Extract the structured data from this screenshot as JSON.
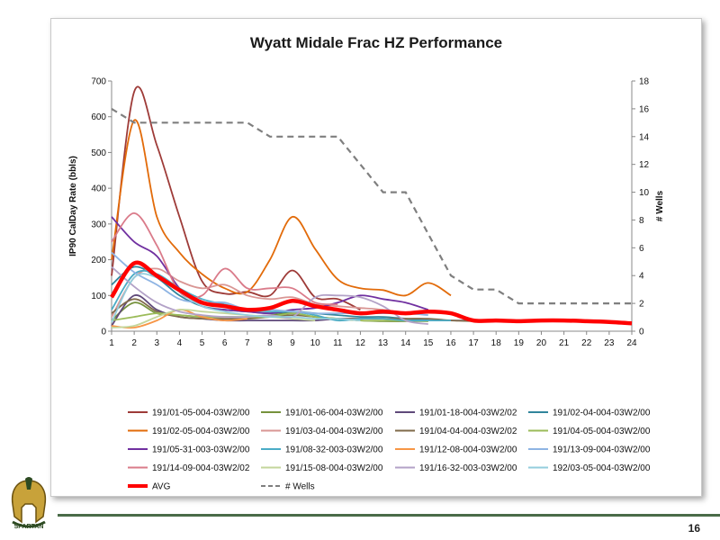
{
  "page": {
    "number": "16",
    "logo_text": "SPARTAN"
  },
  "chart_data": {
    "type": "line",
    "title": "Wyatt Midale Frac HZ Performance",
    "ylabel": "IP90 CalDay Rate (bbls)",
    "y2label": "# Wells",
    "xlabel": "",
    "x": [
      1,
      2,
      3,
      4,
      5,
      6,
      7,
      8,
      9,
      10,
      11,
      12,
      13,
      14,
      15,
      16,
      17,
      18,
      19,
      20,
      21,
      22,
      23,
      24
    ],
    "ylim": [
      0,
      700
    ],
    "yticks": [
      0,
      100,
      200,
      300,
      400,
      500,
      600,
      700
    ],
    "y2lim": [
      0,
      18
    ],
    "y2ticks": [
      0,
      2,
      4,
      6,
      8,
      10,
      12,
      14,
      16,
      18
    ],
    "grid": "none",
    "legend": "bottom",
    "series": [
      {
        "name": "191/01-05-004-03W2/00",
        "color": "#9e3b38",
        "axis": "left",
        "values": [
          155,
          670,
          520,
          320,
          140,
          105,
          110,
          100,
          170,
          95,
          90,
          60,
          null,
          null,
          null,
          null,
          null,
          null,
          null,
          null,
          null,
          null,
          null,
          null
        ]
      },
      {
        "name": "191/01-06-004-03W2/00",
        "color": "#76923c",
        "axis": "left",
        "values": [
          30,
          80,
          50,
          45,
          40,
          40,
          40,
          45,
          50,
          40,
          35,
          30,
          28,
          28,
          28,
          null,
          null,
          null,
          null,
          null,
          null,
          null,
          null,
          null
        ]
      },
      {
        "name": "191/01-18-004-03W2/02",
        "color": "#5f497a",
        "axis": "left",
        "values": [
          15,
          100,
          60,
          40,
          35,
          30,
          30,
          30,
          30,
          30,
          35,
          35,
          35,
          30,
          30,
          30,
          30,
          30,
          30,
          28,
          28,
          28,
          28,
          null
        ]
      },
      {
        "name": "191/02-04-004-03W2/00",
        "color": "#31859c",
        "axis": "left",
        "values": [
          130,
          180,
          150,
          100,
          70,
          60,
          55,
          50,
          55,
          50,
          45,
          40,
          40,
          35,
          30,
          null,
          null,
          null,
          null,
          null,
          null,
          null,
          null,
          null
        ]
      },
      {
        "name": "191/02-05-004-03W2/00",
        "color": "#e26b0a",
        "axis": "left",
        "values": [
          200,
          590,
          320,
          220,
          160,
          120,
          110,
          200,
          320,
          230,
          145,
          120,
          115,
          100,
          135,
          100,
          null,
          null,
          null,
          null,
          null,
          null,
          null,
          null
        ]
      },
      {
        "name": "191/03-04-004-03W2/00",
        "color": "#d99694",
        "axis": "left",
        "values": [
          40,
          150,
          175,
          140,
          120,
          130,
          100,
          90,
          95,
          75,
          70,
          65,
          60,
          50,
          null,
          null,
          null,
          null,
          null,
          null,
          null,
          null,
          null,
          null
        ]
      },
      {
        "name": "191/04-04-004-03W2/02",
        "color": "#7f6a4a",
        "axis": "left",
        "values": [
          50,
          90,
          55,
          40,
          35,
          35,
          35,
          40,
          45,
          40,
          35,
          35,
          35,
          35,
          35,
          30,
          28,
          28,
          null,
          null,
          null,
          null,
          null,
          null
        ]
      },
      {
        "name": "191/04-05-004-03W2/00",
        "color": "#9bbb59",
        "axis": "left",
        "values": [
          30,
          40,
          50,
          45,
          40,
          40,
          40,
          40,
          50,
          40,
          35,
          30,
          30,
          30,
          28,
          null,
          null,
          null,
          null,
          null,
          null,
          null,
          null,
          null
        ]
      },
      {
        "name": "191/05-31-003-03W2/00",
        "color": "#7030a0",
        "axis": "left",
        "values": [
          320,
          250,
          210,
          120,
          70,
          60,
          55,
          50,
          60,
          65,
          80,
          100,
          90,
          80,
          60,
          null,
          null,
          null,
          null,
          null,
          null,
          null,
          null,
          null
        ]
      },
      {
        "name": "191/08-32-003-03W2/00",
        "color": "#4bacc6",
        "axis": "left",
        "values": [
          60,
          160,
          160,
          120,
          90,
          75,
          60,
          55,
          55,
          45,
          30,
          35,
          35,
          30,
          30,
          30,
          null,
          null,
          null,
          null,
          null,
          null,
          null,
          null
        ]
      },
      {
        "name": "191/12-08-004-03W2/00",
        "color": "#f79646",
        "axis": "left",
        "values": [
          15,
          10,
          30,
          60,
          40,
          30,
          35,
          null,
          null,
          null,
          null,
          null,
          null,
          null,
          null,
          null,
          null,
          null,
          null,
          null,
          null,
          null,
          null,
          null
        ]
      },
      {
        "name": "191/13-09-004-03W2/00",
        "color": "#8eb4e3",
        "axis": "left",
        "values": [
          220,
          165,
          130,
          90,
          80,
          80,
          60,
          60,
          55,
          50,
          50,
          50,
          50,
          50,
          45,
          null,
          null,
          null,
          null,
          null,
          null,
          null,
          null,
          null
        ]
      },
      {
        "name": "191/14-09-004-03W2/02",
        "color": "#da7b8a",
        "axis": "left",
        "values": [
          250,
          330,
          240,
          110,
          100,
          175,
          120,
          120,
          120,
          80,
          75,
          null,
          null,
          null,
          null,
          null,
          null,
          null,
          null,
          null,
          null,
          null,
          null,
          null
        ]
      },
      {
        "name": "191/15-08-004-03W2/00",
        "color": "#c3d69b",
        "axis": "left",
        "values": [
          10,
          15,
          40,
          60,
          55,
          50,
          45,
          40,
          35,
          30,
          null,
          null,
          null,
          null,
          null,
          null,
          null,
          null,
          null,
          null,
          null,
          null,
          null,
          null
        ]
      },
      {
        "name": "191/16-32-003-03W2/00",
        "color": "#b3a2c7",
        "axis": "left",
        "values": [
          180,
          125,
          80,
          55,
          45,
          40,
          40,
          45,
          40,
          95,
          100,
          95,
          70,
          30,
          20,
          null,
          null,
          null,
          null,
          null,
          null,
          null,
          null,
          null
        ]
      },
      {
        "name": "192/03-05-004-03W2/00",
        "color": "#93cddd",
        "axis": "left",
        "values": [
          25,
          150,
          150,
          110,
          70,
          55,
          45,
          40,
          40,
          35,
          35,
          30,
          null,
          null,
          null,
          null,
          null,
          null,
          null,
          null,
          null,
          null,
          null,
          null
        ]
      },
      {
        "name": "AVG",
        "color": "#ff0000",
        "axis": "left",
        "values": [
          95,
          190,
          155,
          115,
          80,
          70,
          60,
          65,
          85,
          70,
          60,
          50,
          55,
          50,
          55,
          50,
          30,
          30,
          28,
          30,
          30,
          28,
          26,
          22
        ]
      },
      {
        "name": "# Wells",
        "color": "#7f7f7f",
        "axis": "right",
        "dashed": true,
        "values": [
          16,
          15,
          15,
          15,
          15,
          15,
          15,
          14,
          14,
          14,
          14,
          12,
          10,
          10,
          7,
          4,
          3,
          3,
          2,
          2,
          2,
          2,
          2,
          2
        ]
      }
    ]
  }
}
